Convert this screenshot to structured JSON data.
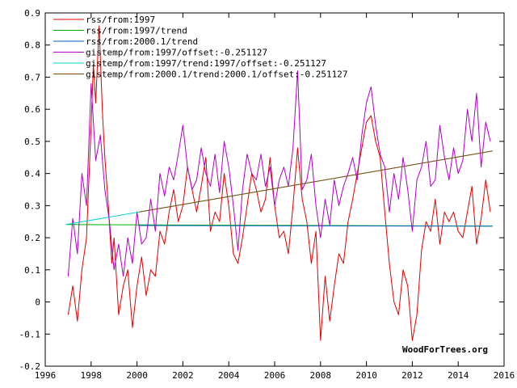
{
  "chart_data": {
    "type": "line",
    "title": "",
    "xlabel": "",
    "ylabel": "",
    "xlim": [
      1996,
      2016
    ],
    "ylim": [
      -0.2,
      0.9
    ],
    "x_ticks": [
      1996,
      1998,
      2000,
      2002,
      2004,
      2006,
      2008,
      2010,
      2012,
      2014,
      2016
    ],
    "y_ticks": [
      -0.2,
      -0.1,
      0,
      0.1,
      0.2,
      0.3,
      0.4,
      0.5,
      0.6,
      0.7,
      0.8,
      0.9
    ],
    "x_tick_labels": [
      "1996",
      "1998",
      "2000",
      "2002",
      "2004",
      "2006",
      "2008",
      "2010",
      "2012",
      "2014",
      "2016"
    ],
    "y_tick_labels": [
      "-0.2",
      "-0.1",
      "0",
      "0.1",
      "0.2",
      "0.3",
      "0.4",
      "0.5",
      "0.6",
      "0.7",
      "0.8",
      "0.9"
    ],
    "grid": false,
    "legend_position": "top-left",
    "watermark": "WoodForTrees.org",
    "series": [
      {
        "name": "rss/from:1997",
        "color": "#e00000",
        "kind": "monthly",
        "x": [
          1997.0,
          1997.2,
          1997.4,
          1997.6,
          1997.8,
          1998.0,
          1998.1,
          1998.2,
          1998.35,
          1998.5,
          1998.6,
          1998.75,
          1998.9,
          1999.0,
          1999.2,
          1999.4,
          1999.6,
          1999.8,
          2000.0,
          2000.2,
          2000.4,
          2000.6,
          2000.8,
          2001.0,
          2001.2,
          2001.4,
          2001.6,
          2001.8,
          2002.0,
          2002.2,
          2002.4,
          2002.6,
          2002.8,
          2003.0,
          2003.2,
          2003.4,
          2003.6,
          2003.8,
          2004.0,
          2004.2,
          2004.4,
          2004.6,
          2004.8,
          2005.0,
          2005.2,
          2005.4,
          2005.6,
          2005.8,
          2006.0,
          2006.2,
          2006.4,
          2006.6,
          2006.8,
          2007.0,
          2007.2,
          2007.4,
          2007.6,
          2007.8,
          2008.0,
          2008.2,
          2008.4,
          2008.6,
          2008.8,
          2009.0,
          2009.2,
          2009.4,
          2009.6,
          2009.8,
          2010.0,
          2010.2,
          2010.4,
          2010.6,
          2010.8,
          2011.0,
          2011.2,
          2011.4,
          2011.6,
          2011.8,
          2012.0,
          2012.2,
          2012.4,
          2012.6,
          2012.8,
          2013.0,
          2013.2,
          2013.4,
          2013.6,
          2013.8,
          2014.0,
          2014.2,
          2014.4,
          2014.6,
          2014.8,
          2015.0,
          2015.2,
          2015.4
        ],
        "y": [
          -0.04,
          0.05,
          -0.06,
          0.1,
          0.2,
          0.55,
          0.74,
          0.62,
          0.86,
          0.58,
          0.45,
          0.3,
          0.12,
          0.2,
          -0.04,
          0.05,
          0.1,
          -0.08,
          0.05,
          0.14,
          0.02,
          0.1,
          0.08,
          0.22,
          0.18,
          0.28,
          0.35,
          0.25,
          0.3,
          0.42,
          0.35,
          0.28,
          0.36,
          0.45,
          0.22,
          0.28,
          0.25,
          0.4,
          0.3,
          0.15,
          0.12,
          0.2,
          0.3,
          0.4,
          0.35,
          0.28,
          0.32,
          0.45,
          0.3,
          0.2,
          0.22,
          0.15,
          0.3,
          0.48,
          0.32,
          0.25,
          0.12,
          0.22,
          -0.12,
          0.08,
          -0.06,
          0.05,
          0.15,
          0.12,
          0.25,
          0.32,
          0.4,
          0.48,
          0.56,
          0.58,
          0.5,
          0.45,
          0.28,
          0.12,
          0.0,
          -0.04,
          0.1,
          0.05,
          -0.12,
          -0.04,
          0.16,
          0.25,
          0.22,
          0.32,
          0.18,
          0.28,
          0.25,
          0.28,
          0.22,
          0.2,
          0.28,
          0.36,
          0.18,
          0.26,
          0.38,
          0.28
        ]
      },
      {
        "name": "rss/from:1997/trend",
        "color": "#00b000",
        "kind": "line",
        "x": [
          1996.9,
          2015.5
        ],
        "y": [
          0.241,
          0.236
        ]
      },
      {
        "name": "rss/from:2000.1/trend",
        "color": "#0060c0",
        "kind": "line",
        "x": [
          2000.1,
          2015.5
        ],
        "y": [
          0.238,
          0.236
        ]
      },
      {
        "name": "gistemp/from:1997/offset:-0.251127",
        "color": "#b000c8",
        "kind": "monthly",
        "x": [
          1997.0,
          1997.2,
          1997.4,
          1997.6,
          1997.8,
          1998.0,
          1998.2,
          1998.4,
          1998.6,
          1998.8,
          1999.0,
          1999.2,
          1999.4,
          1999.6,
          1999.8,
          2000.0,
          2000.2,
          2000.4,
          2000.6,
          2000.8,
          2001.0,
          2001.2,
          2001.4,
          2001.6,
          2001.8,
          2002.0,
          2002.2,
          2002.4,
          2002.6,
          2002.8,
          2003.0,
          2003.2,
          2003.4,
          2003.6,
          2003.8,
          2004.0,
          2004.2,
          2004.4,
          2004.6,
          2004.8,
          2005.0,
          2005.2,
          2005.4,
          2005.6,
          2005.8,
          2006.0,
          2006.2,
          2006.4,
          2006.6,
          2006.8,
          2007.0,
          2007.2,
          2007.4,
          2007.6,
          2007.8,
          2008.0,
          2008.2,
          2008.4,
          2008.6,
          2008.8,
          2009.0,
          2009.2,
          2009.4,
          2009.6,
          2009.8,
          2010.0,
          2010.2,
          2010.4,
          2010.6,
          2010.8,
          2011.0,
          2011.2,
          2011.4,
          2011.6,
          2011.8,
          2012.0,
          2012.2,
          2012.4,
          2012.6,
          2012.8,
          2013.0,
          2013.2,
          2013.4,
          2013.6,
          2013.8,
          2014.0,
          2014.2,
          2014.4,
          2014.6,
          2014.8,
          2015.0,
          2015.2,
          2015.4
        ],
        "y": [
          0.08,
          0.26,
          0.15,
          0.4,
          0.3,
          0.68,
          0.44,
          0.52,
          0.35,
          0.25,
          0.1,
          0.18,
          0.08,
          0.2,
          0.12,
          0.28,
          0.18,
          0.2,
          0.32,
          0.22,
          0.4,
          0.33,
          0.42,
          0.38,
          0.46,
          0.55,
          0.42,
          0.35,
          0.38,
          0.48,
          0.4,
          0.36,
          0.46,
          0.34,
          0.5,
          0.42,
          0.3,
          0.16,
          0.35,
          0.46,
          0.4,
          0.38,
          0.46,
          0.36,
          0.42,
          0.3,
          0.38,
          0.42,
          0.36,
          0.48,
          0.72,
          0.35,
          0.38,
          0.46,
          0.3,
          0.2,
          0.32,
          0.24,
          0.38,
          0.3,
          0.36,
          0.4,
          0.45,
          0.38,
          0.52,
          0.62,
          0.67,
          0.55,
          0.46,
          0.42,
          0.28,
          0.4,
          0.32,
          0.45,
          0.35,
          0.22,
          0.38,
          0.42,
          0.5,
          0.36,
          0.38,
          0.55,
          0.45,
          0.38,
          0.48,
          0.4,
          0.44,
          0.6,
          0.5,
          0.65,
          0.42,
          0.56,
          0.5
        ]
      },
      {
        "name": "gistemp/from:1997/trend:1997/offset:-0.251127",
        "color": "#00d0d0",
        "kind": "line",
        "x": [
          1996.9,
          2015.5
        ],
        "y": [
          0.241,
          0.47
        ]
      },
      {
        "name": "gistemp/from:2000.1/trend:2000.1/offset:-0.251127",
        "color": "#8b4500",
        "kind": "line",
        "x": [
          2000.1,
          2015.5
        ],
        "y": [
          0.28,
          0.47
        ]
      }
    ]
  }
}
